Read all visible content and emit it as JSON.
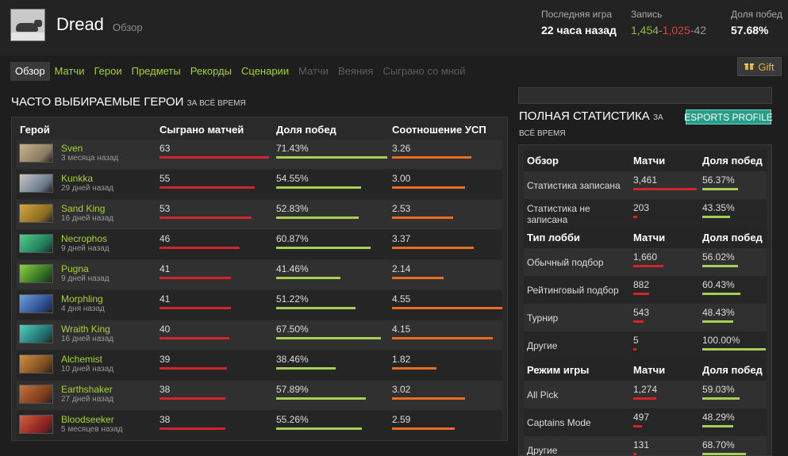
{
  "header": {
    "name": "Dread",
    "subtitle": "Обзор",
    "last_game_label": "Последняя игра",
    "last_game_value": "22 часа назад",
    "record_label": "Запись",
    "record_wins": "1,454",
    "record_sep1": "-",
    "record_losses": "1,025",
    "record_sep2": "-",
    "record_abandons": "42",
    "winrate_label": "Доля побед",
    "winrate_value": "57.68%"
  },
  "nav": {
    "items": [
      "Обзор",
      "Матчи",
      "Герои",
      "Предметы",
      "Рекорды",
      "Сценарии",
      "Матчи",
      "Веяния",
      "Сыграно со мной"
    ],
    "gift": "Gift"
  },
  "heroes_section": {
    "title": "ЧАСТО ВЫБИРАЕМЫЕ ГЕРОИ",
    "title_small": "ЗА ВСЁ ВРЕМЯ",
    "columns": [
      "Герой",
      "Сыграно матчей",
      "Доля побед",
      "Соотношение УСП"
    ],
    "rows": [
      {
        "name": "Sven",
        "time": "3 месяца назад",
        "matches": "63",
        "winrate": "71.43%",
        "kda": "3.26"
      },
      {
        "name": "Kunkka",
        "time": "29 дней назад",
        "matches": "55",
        "winrate": "54.55%",
        "kda": "3.00"
      },
      {
        "name": "Sand King",
        "time": "16 дней назад",
        "matches": "53",
        "winrate": "52.83%",
        "kda": "2.53"
      },
      {
        "name": "Necrophos",
        "time": "9 дней назад",
        "matches": "46",
        "winrate": "60.87%",
        "kda": "3.37"
      },
      {
        "name": "Pugna",
        "time": "9 дней назад",
        "matches": "41",
        "winrate": "41.46%",
        "kda": "2.14"
      },
      {
        "name": "Morphling",
        "time": "4 дня назад",
        "matches": "41",
        "winrate": "51.22%",
        "kda": "4.55"
      },
      {
        "name": "Wraith King",
        "time": "16 дней назад",
        "matches": "40",
        "winrate": "67.50%",
        "kda": "4.15"
      },
      {
        "name": "Alchemist",
        "time": "10 дней назад",
        "matches": "39",
        "winrate": "38.46%",
        "kda": "1.82"
      },
      {
        "name": "Earthshaker",
        "time": "27 дней назад",
        "matches": "38",
        "winrate": "57.89%",
        "kda": "3.02"
      },
      {
        "name": "Bloodseeker",
        "time": "5 месяцев назад",
        "matches": "38",
        "winrate": "55.26%",
        "kda": "2.59"
      }
    ]
  },
  "stats_section": {
    "title": "ПОЛНАЯ СТАТИСТИКА",
    "title_small_1": "ЗА",
    "title_small_2": "ВСЁ ВРЕМЯ",
    "esports": "ESPORTS PROFILE",
    "groups": [
      {
        "header": [
          "Обзор",
          "Матчи",
          "Доля побед"
        ],
        "rows": [
          {
            "label": "Статистика записана",
            "matches": "3,461",
            "winrate": "56.37%"
          },
          {
            "label": "Статистика не записана",
            "matches": "203",
            "winrate": "43.35%"
          }
        ]
      },
      {
        "header": [
          "Тип лобби",
          "Матчи",
          "Доля побед"
        ],
        "rows": [
          {
            "label": "Обычный подбор",
            "matches": "1,660",
            "winrate": "56.02%"
          },
          {
            "label": "Рейтинговый подбор",
            "matches": "882",
            "winrate": "60.43%"
          },
          {
            "label": "Турнир",
            "matches": "543",
            "winrate": "48.43%"
          },
          {
            "label": "Другие",
            "matches": "5",
            "winrate": "100.00%"
          }
        ]
      },
      {
        "header": [
          "Режим игры",
          "Матчи",
          "Доля побед"
        ],
        "rows": [
          {
            "label": "All Pick",
            "matches": "1,274",
            "winrate": "59.03%"
          },
          {
            "label": "Captains Mode",
            "matches": "497",
            "winrate": "48.29%"
          },
          {
            "label": "Другие",
            "matches": "131",
            "winrate": "68.70%"
          }
        ]
      }
    ]
  },
  "colors": {
    "accent_green": "#a8d130",
    "bar_red": "#d0262b",
    "bar_green": "#a7cf55",
    "bar_orange": "#e86d25",
    "esports": "#2a9d8a"
  }
}
